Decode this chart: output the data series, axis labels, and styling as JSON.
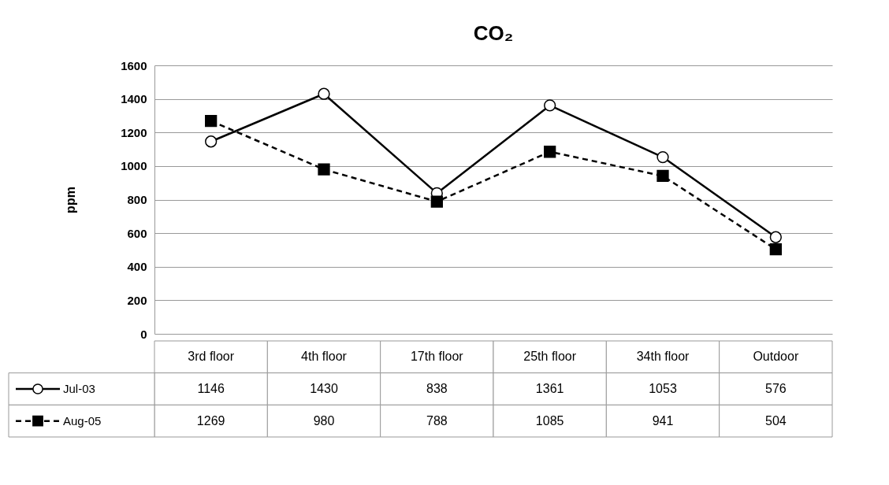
{
  "chart_data": {
    "type": "line",
    "title": "CO₂",
    "ylabel": "ppm",
    "categories": [
      "3rd floor",
      "4th floor",
      "17th floor",
      "25th floor",
      "34th floor",
      "Outdoor"
    ],
    "series": [
      {
        "name": "Jul-03",
        "color": "#000000",
        "marker": "circle",
        "line_style": "solid",
        "values": [
          1146,
          1430,
          838,
          1361,
          1053,
          576
        ]
      },
      {
        "name": "Aug-05",
        "color": "#000000",
        "marker": "square",
        "line_style": "dashed",
        "values": [
          1269,
          980,
          788,
          1085,
          941,
          504
        ]
      }
    ],
    "ylim": [
      0,
      1600
    ],
    "yticks": [
      0,
      200,
      400,
      600,
      800,
      1000,
      1200,
      1400,
      1600
    ],
    "grid": "y",
    "legend": "bottom",
    "data_labels": true
  }
}
